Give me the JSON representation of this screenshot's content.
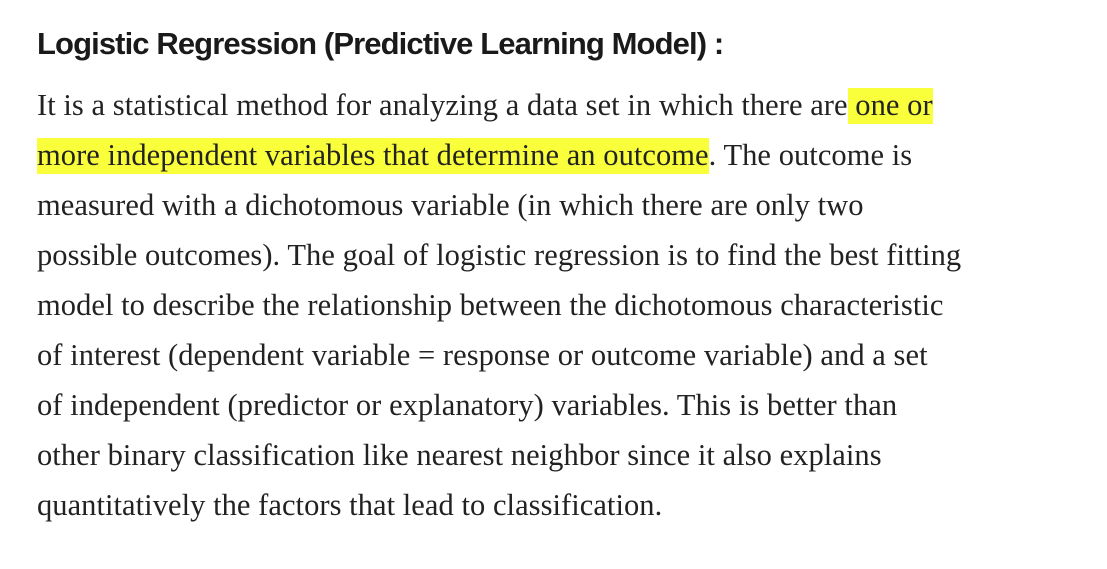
{
  "heading": "Logistic Regression (Predictive Learning Model) :",
  "highlight_color": "#faff3c",
  "paragraph": {
    "line1_pre": "It is a statistical method for analyzing a data set in which there are",
    "line1_highlight": " one or",
    "line2_highlight": "more independent variables that determine an outcome",
    "line2_post": ". The outcome is",
    "line3": "measured with a dichotomous variable (in which there are only two",
    "line4": "possible outcomes). The goal of logistic regression is to find the best fitting",
    "line5": "model to describe the relationship between the dichotomous characteristic",
    "line6": "of interest (dependent variable = response or outcome variable) and a set",
    "line7": "of independent (predictor or explanatory) variables. This is better than",
    "line8": "other binary classification like nearest neighbor since it also explains",
    "line9": "quantitatively the factors that lead to classification."
  }
}
